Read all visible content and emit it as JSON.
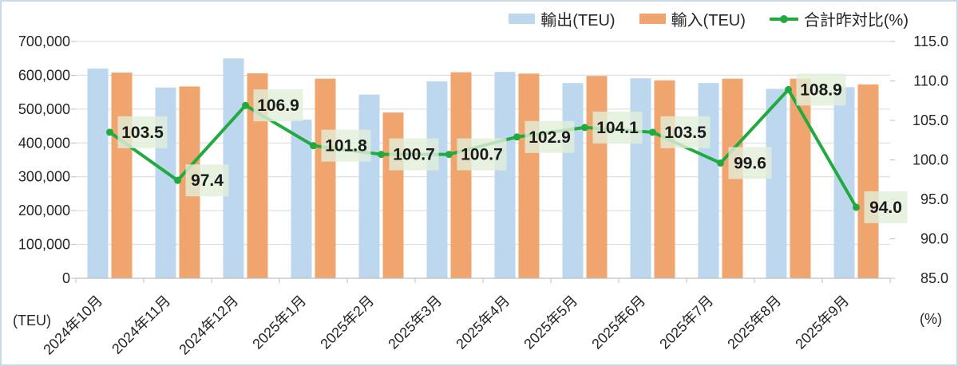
{
  "legend": {
    "items": [
      {
        "label": "輸出(TEU)",
        "type": "bar",
        "color": "#BDD7EE"
      },
      {
        "label": "輸入(TEU)",
        "type": "bar",
        "color": "#F1A56E"
      },
      {
        "label": "合計昨対比(%)",
        "type": "line",
        "color": "#22AA40"
      }
    ]
  },
  "axes": {
    "left_unit": "(TEU)",
    "right_unit": "(%)"
  },
  "colors": {
    "export_bar": "#BDD7EE",
    "import_bar": "#F1A56E",
    "yoy_line": "#22AA40",
    "data_label_bg": "#E2EFDA",
    "gridline": "#D9D9D9",
    "axis_line": "#BFBFBF",
    "text": "#262626",
    "frame_border": "#C9DAE7"
  },
  "chart_data": {
    "type": "combo (bar + line)",
    "categories": [
      "2024年10月",
      "2024年11月",
      "2024年12月",
      "2025年1月",
      "2025年2月",
      "2025年3月",
      "2025年4月",
      "2025年5月",
      "2025年6月",
      "2025年7月",
      "2025年8月",
      "2025年9月"
    ],
    "series": [
      {
        "name": "輸出(TEU)",
        "type": "bar",
        "axis": "left",
        "color": "#BDD7EE",
        "values": [
          620000,
          564000,
          650000,
          469000,
          543000,
          582000,
          610000,
          577000,
          591000,
          577000,
          560000,
          565000
        ]
      },
      {
        "name": "輸入(TEU)",
        "type": "bar",
        "axis": "left",
        "color": "#F1A56E",
        "values": [
          608000,
          567000,
          606000,
          590000,
          490000,
          609000,
          605000,
          598000,
          585000,
          590000,
          590000,
          573000
        ]
      },
      {
        "name": "合計昨対比(%)",
        "type": "line",
        "axis": "right",
        "color": "#22AA40",
        "data_labels": true,
        "values": [
          103.5,
          97.4,
          106.9,
          101.8,
          100.7,
          100.7,
          102.9,
          104.1,
          103.5,
          99.6,
          108.9,
          94.0
        ]
      }
    ],
    "left_axis": {
      "min": 0,
      "max": 700000,
      "step": 100000,
      "unit": "(TEU)",
      "tick_labels": [
        "0",
        "100,000",
        "200,000",
        "300,000",
        "400,000",
        "500,000",
        "600,000",
        "700,000"
      ]
    },
    "right_axis": {
      "min": 85,
      "max": 115,
      "step": 5,
      "unit": "(%)",
      "tick_labels": [
        "85.0",
        "90.0",
        "95.0",
        "100.0",
        "105.0",
        "110.0",
        "115.0"
      ]
    },
    "grid": true,
    "legend_position": "top-right"
  }
}
